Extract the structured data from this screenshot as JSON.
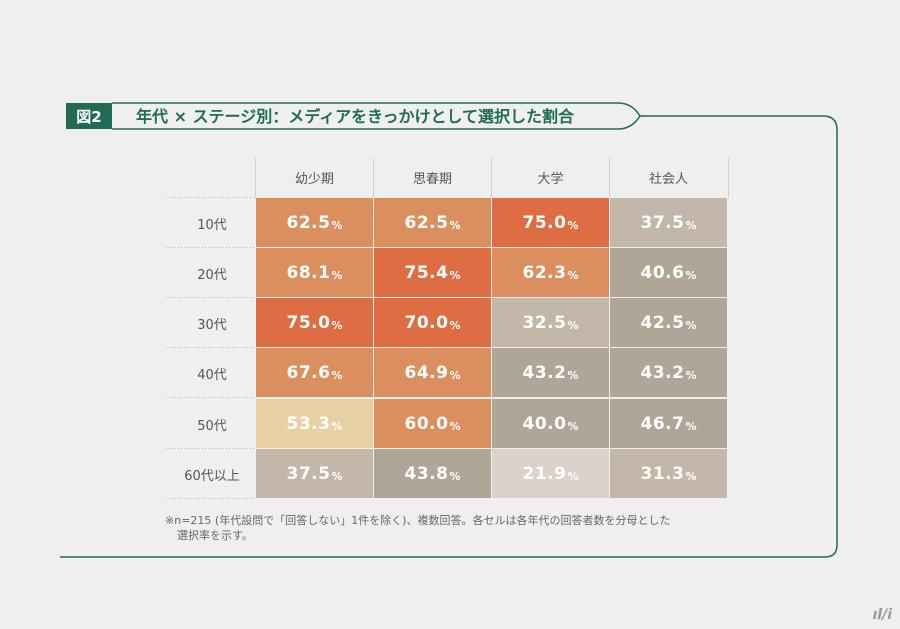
{
  "figure": {
    "label": "図2",
    "title": "年代 × ステージ別：メディアをきっかけとして選択した割合"
  },
  "chart_data": {
    "type": "heatmap",
    "columns": [
      "幼少期",
      "思春期",
      "大学",
      "社会人"
    ],
    "rows": [
      "10代",
      "20代",
      "30代",
      "40代",
      "50代",
      "60代以上"
    ],
    "unit": "%",
    "values": [
      [
        62.5,
        62.5,
        75.0,
        37.5
      ],
      [
        68.1,
        75.4,
        62.3,
        40.6
      ],
      [
        75.0,
        70.0,
        32.5,
        42.5
      ],
      [
        67.6,
        64.9,
        43.2,
        43.2
      ],
      [
        53.3,
        60.0,
        40.0,
        46.7
      ],
      [
        37.5,
        43.8,
        21.9,
        31.3
      ]
    ],
    "cell_colors": [
      [
        "#dc8f5e",
        "#dc8f5e",
        "#df6d43",
        "#c2b7a8"
      ],
      [
        "#dc8f5e",
        "#df6d43",
        "#dc8f5e",
        "#b0a697"
      ],
      [
        "#df6d43",
        "#df6d43",
        "#c2b7a8",
        "#b0a697"
      ],
      [
        "#dc8f5e",
        "#dc8f5e",
        "#b0a697",
        "#b0a697"
      ],
      [
        "#e7d0a4",
        "#dc8f5e",
        "#b0a697",
        "#b0a697"
      ],
      [
        "#c2b7a8",
        "#b0a697",
        "#d9d1ca",
        "#c2b7a8"
      ]
    ]
  },
  "footnote": {
    "line1": "※n=215 (年代設問で「回答しない」1件を除く)、複数回答。各セルは各年代の回答者数を分母とした",
    "line2": "選択率を示す。"
  },
  "logo_text": "ıl/i"
}
